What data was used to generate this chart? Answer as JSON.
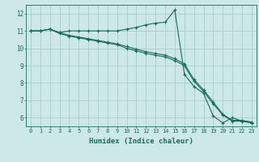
{
  "background_color": "#cce8e8",
  "grid_color": "#aacccc",
  "line_color": "#1a6b5a",
  "x_label": "Humidex (Indice chaleur)",
  "ylim": [
    5.5,
    12.5
  ],
  "xlim": [
    -0.5,
    23.5
  ],
  "yticks": [
    6,
    7,
    8,
    9,
    10,
    11,
    12
  ],
  "xticks": [
    0,
    1,
    2,
    3,
    4,
    5,
    6,
    7,
    8,
    9,
    10,
    11,
    12,
    13,
    14,
    15,
    16,
    17,
    18,
    19,
    20,
    21,
    22,
    23
  ],
  "series": [
    {
      "x": [
        0,
        1,
        2,
        3,
        4,
        5,
        6,
        7,
        8,
        9,
        10,
        11,
        12,
        13,
        14,
        15,
        16,
        17,
        18,
        19,
        20,
        21,
        22,
        23
      ],
      "y": [
        11.0,
        11.0,
        11.1,
        10.9,
        11.0,
        11.0,
        11.0,
        11.0,
        11.0,
        11.0,
        11.1,
        11.2,
        11.35,
        11.45,
        11.5,
        12.2,
        8.5,
        7.8,
        7.4,
        6.1,
        5.7,
        6.0,
        5.8,
        5.7
      ]
    },
    {
      "x": [
        0,
        1,
        2,
        3,
        4,
        5,
        6,
        7,
        8,
        9,
        10,
        11,
        12,
        13,
        14,
        15,
        16,
        17,
        18,
        19,
        20,
        21,
        22,
        23
      ],
      "y": [
        11.0,
        11.0,
        11.1,
        10.85,
        10.7,
        10.6,
        10.5,
        10.4,
        10.3,
        10.2,
        10.0,
        9.85,
        9.7,
        9.6,
        9.5,
        9.3,
        9.0,
        8.1,
        7.5,
        6.8,
        6.15,
        5.8,
        5.8,
        5.7
      ]
    },
    {
      "x": [
        0,
        1,
        2,
        3,
        4,
        5,
        6,
        7,
        8,
        9,
        10,
        11,
        12,
        13,
        14,
        15,
        16,
        17,
        18,
        19,
        20,
        21,
        22,
        23
      ],
      "y": [
        11.0,
        11.0,
        11.1,
        10.9,
        10.75,
        10.65,
        10.55,
        10.45,
        10.35,
        10.25,
        10.1,
        9.95,
        9.8,
        9.7,
        9.6,
        9.4,
        9.1,
        8.2,
        7.6,
        6.9,
        6.2,
        5.85,
        5.85,
        5.75
      ]
    }
  ],
  "tick_color": "#1a6b5a",
  "tick_fontsize": 5,
  "xlabel_fontsize": 6.5,
  "linewidth": 0.8,
  "markersize": 2.5
}
